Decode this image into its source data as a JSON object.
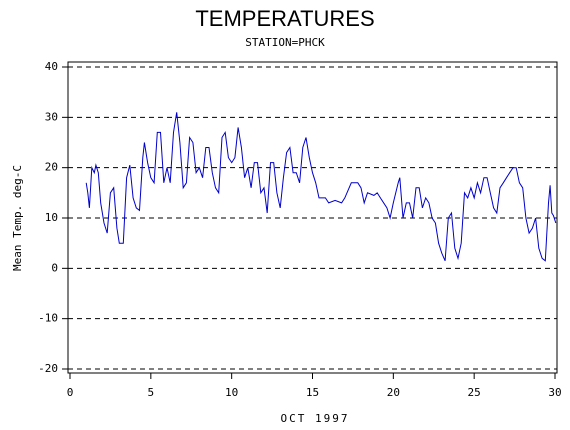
{
  "chart_data": {
    "type": "line",
    "title": "TEMPERATURES",
    "subtitle": "STATION=PHCK",
    "x_label": "OCT 1997",
    "y_label": "Mean Temp. deg-C",
    "x": [
      1,
      1.1,
      1.2,
      1.35,
      1.5,
      1.6,
      1.75,
      1.9,
      2.1,
      2.3,
      2.5,
      2.7,
      2.9,
      3.05,
      3.3,
      3.5,
      3.7,
      3.9,
      4.1,
      4.3,
      4.5,
      4.6,
      4.8,
      5,
      5.2,
      5.4,
      5.6,
      5.8,
      6,
      6.2,
      6.4,
      6.6,
      6.8,
      7,
      7.2,
      7.4,
      7.6,
      7.8,
      8,
      8.2,
      8.4,
      8.6,
      8.8,
      9,
      9.2,
      9.4,
      9.6,
      9.8,
      10,
      10.2,
      10.4,
      10.6,
      10.8,
      11,
      11.2,
      11.4,
      11.6,
      11.8,
      12,
      12.2,
      12.4,
      12.6,
      12.8,
      13,
      13.2,
      13.4,
      13.6,
      13.8,
      14,
      14.2,
      14.4,
      14.6,
      14.8,
      15,
      15.2,
      15.4,
      15.6,
      15.8,
      16,
      16.4,
      16.8,
      17,
      17.4,
      17.8,
      18,
      18.2,
      18.4,
      18.8,
      19,
      19.2,
      19.6,
      19.8,
      20,
      20.3,
      20.4,
      20.6,
      20.8,
      21,
      21.2,
      21.4,
      21.6,
      21.8,
      22,
      22.2,
      22.4,
      22.6,
      22.8,
      23,
      23.2,
      23.4,
      23.6,
      23.8,
      24,
      24.2,
      24.4,
      24.6,
      24.8,
      25,
      25.2,
      25.4,
      25.6,
      25.8,
      26,
      26.2,
      26.4,
      26.6,
      26.8,
      27,
      27.2,
      27.4,
      27.6,
      27.8,
      28,
      28.2,
      28.4,
      28.6,
      28.8,
      29,
      29.2,
      29.4,
      29.6,
      29.7,
      29.8,
      29.9,
      30.05
    ],
    "values": [
      17,
      15,
      12,
      20,
      19,
      20.5,
      19,
      13,
      9,
      7,
      15,
      16,
      8,
      5,
      5,
      18,
      20.5,
      14,
      12,
      11.5,
      22,
      25,
      21,
      18,
      17,
      27,
      27,
      17,
      20,
      17,
      27,
      31,
      25,
      16,
      17,
      26,
      25,
      19,
      20,
      18,
      24,
      24,
      19,
      16,
      15,
      26,
      27,
      22,
      21,
      22,
      28,
      24,
      18,
      20,
      16,
      21,
      21,
      15,
      16,
      11,
      21,
      21,
      15,
      12,
      18,
      23,
      24,
      19,
      19,
      17,
      24,
      26,
      22,
      19,
      17,
      14,
      14,
      14,
      13,
      13.5,
      13,
      14,
      17,
      17,
      16,
      13,
      15,
      14.5,
      15,
      14,
      12,
      10,
      13,
      17,
      18,
      10,
      13,
      13,
      10,
      16,
      16,
      12,
      14,
      13,
      10,
      9,
      5,
      3,
      1.5,
      10,
      11,
      4,
      2,
      5,
      15,
      14,
      16,
      14,
      17,
      15,
      18,
      18,
      15,
      12,
      11,
      16,
      17,
      18,
      19,
      20,
      20,
      17,
      16,
      10,
      7,
      8,
      10,
      4,
      2,
      1.5,
      13,
      16.5,
      11,
      10.5,
      9
    ],
    "color": "#0000cc",
    "xlim": [
      0,
      30
    ],
    "xticks": [
      0,
      5,
      10,
      15,
      20,
      25,
      30
    ],
    "ylim": [
      -20,
      40
    ],
    "yticks": [
      -20,
      -10,
      0,
      10,
      20,
      30,
      40
    ],
    "grid": true
  }
}
